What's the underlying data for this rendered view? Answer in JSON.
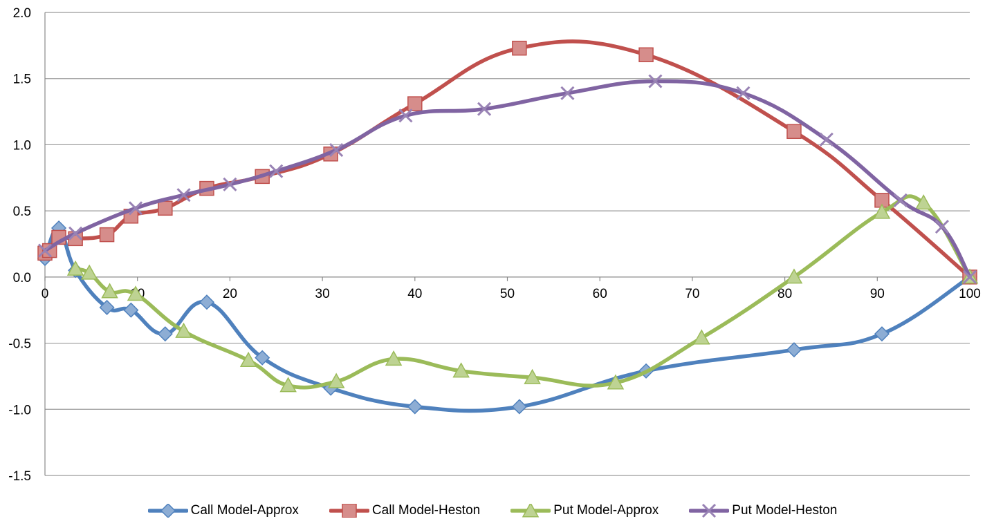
{
  "chart_data": {
    "type": "line",
    "title": "",
    "xlabel": "",
    "ylabel": "",
    "xlim": [
      0,
      100
    ],
    "ylim": [
      -1.5,
      2.0
    ],
    "x_ticks": [
      "0",
      "10",
      "20",
      "30",
      "40",
      "50",
      "60",
      "70",
      "80",
      "90",
      "100"
    ],
    "y_ticks": [
      "2.0",
      "1.5",
      "1.0",
      "0.5",
      "0.0",
      "-0.5",
      "-1.0",
      "-1.5"
    ],
    "grid": "horizontal",
    "smooth": true,
    "legend_position": "bottom",
    "series": [
      {
        "name": "Call Model-Approx",
        "color": "#4f81bd",
        "marker": "diamond",
        "points": [
          [
            0,
            0.14
          ],
          [
            1.5,
            0.37
          ],
          [
            3.3,
            0.05
          ],
          [
            6.7,
            -0.23
          ],
          [
            9.3,
            -0.25
          ],
          [
            13,
            -0.43
          ],
          [
            17.5,
            -0.19
          ],
          [
            23.5,
            -0.61
          ],
          [
            30.9,
            -0.84
          ],
          [
            40,
            -0.98
          ],
          [
            51.3,
            -0.98
          ],
          [
            65,
            -0.71
          ],
          [
            81,
            -0.55
          ],
          [
            90.5,
            -0.43
          ],
          [
            100,
            0.0
          ]
        ]
      },
      {
        "name": "Call Model-Heston",
        "color": "#c0504d",
        "marker": "square",
        "points": [
          [
            0,
            0.18
          ],
          [
            0.5,
            0.2
          ],
          [
            1.5,
            0.3
          ],
          [
            3.3,
            0.29
          ],
          [
            6.7,
            0.32
          ],
          [
            9.3,
            0.46
          ],
          [
            13,
            0.52
          ],
          [
            17.5,
            0.67
          ],
          [
            23.5,
            0.76
          ],
          [
            30.9,
            0.93
          ],
          [
            40,
            1.31
          ],
          [
            51.3,
            1.73
          ],
          [
            65,
            1.68
          ],
          [
            81,
            1.1
          ],
          [
            90.5,
            0.58
          ],
          [
            100,
            0.0
          ]
        ]
      },
      {
        "name": "Put Model-Approx",
        "color": "#9bbb59",
        "marker": "triangle",
        "points": [
          [
            3.3,
            0.06
          ],
          [
            4.8,
            0.03
          ],
          [
            7,
            -0.11
          ],
          [
            9.8,
            -0.13
          ],
          [
            15,
            -0.41
          ],
          [
            22,
            -0.63
          ],
          [
            26.3,
            -0.82
          ],
          [
            31.5,
            -0.79
          ],
          [
            37.7,
            -0.62
          ],
          [
            45,
            -0.71
          ],
          [
            52.7,
            -0.76
          ],
          [
            61.7,
            -0.8
          ],
          [
            71,
            -0.46
          ],
          [
            81,
            0.0
          ],
          [
            90.5,
            0.49
          ],
          [
            95,
            0.56
          ],
          [
            100,
            0.0
          ]
        ]
      },
      {
        "name": "Put Model-Heston",
        "color": "#8064a2",
        "marker": "x",
        "points": [
          [
            0,
            0.2
          ],
          [
            3.3,
            0.33
          ],
          [
            9.8,
            0.52
          ],
          [
            15,
            0.62
          ],
          [
            20,
            0.7
          ],
          [
            25,
            0.8
          ],
          [
            31.5,
            0.96
          ],
          [
            39,
            1.22
          ],
          [
            47.5,
            1.27
          ],
          [
            56.5,
            1.39
          ],
          [
            66,
            1.48
          ],
          [
            75.5,
            1.39
          ],
          [
            84.5,
            1.04
          ],
          [
            92.5,
            0.58
          ],
          [
            97,
            0.38
          ],
          [
            100,
            0.0
          ]
        ]
      }
    ]
  }
}
